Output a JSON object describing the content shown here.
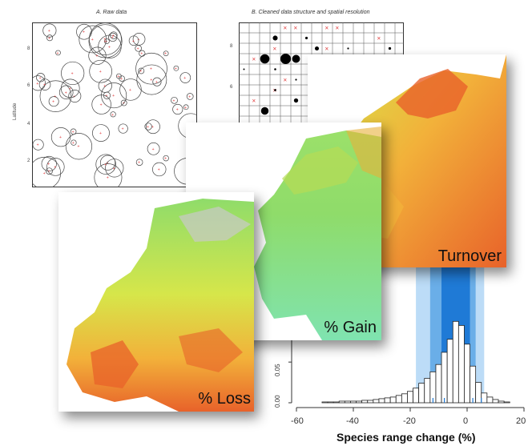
{
  "panel_a": {
    "title": "A. Raw data",
    "ylabel": "Latitude",
    "yticks": [
      "8",
      "6",
      "4",
      "2"
    ]
  },
  "panel_b": {
    "title": "B. Cleaned data structure and spatial resolution",
    "yticks": [
      "8",
      "6"
    ]
  },
  "maps": {
    "turnover": {
      "label": "Turnover"
    },
    "gain": {
      "label": "% Gain"
    },
    "loss": {
      "label": "% Loss"
    }
  },
  "colors": {
    "high": "#e8622a",
    "mid": "#f2b13a",
    "low": "#d6e64a",
    "green": "#8fdc6a",
    "teal": "#7fe3b0",
    "bar_fill": "#ffffff",
    "band_light": "#bcdcf7",
    "band_mid": "#6aaee8",
    "band_dark": "#1f7ad6",
    "red_cross": "#e0393a"
  },
  "chart_data": {
    "type": "bar",
    "xlabel": "Species range change (%)",
    "ylabel": "",
    "xlim": [
      -60,
      20
    ],
    "ylim": [
      0,
      0.18
    ],
    "xticks": [
      "-60",
      "-40",
      "-20",
      "0",
      "20"
    ],
    "yticks": [
      "0.00",
      "0.05"
    ],
    "bin_width": 2,
    "bins": [
      {
        "x": -50,
        "value": 0.001
      },
      {
        "x": -48,
        "value": 0.001
      },
      {
        "x": -46,
        "value": 0.001
      },
      {
        "x": -44,
        "value": 0.002
      },
      {
        "x": -42,
        "value": 0.002
      },
      {
        "x": -40,
        "value": 0.002
      },
      {
        "x": -38,
        "value": 0.002
      },
      {
        "x": -36,
        "value": 0.003
      },
      {
        "x": -34,
        "value": 0.003
      },
      {
        "x": -32,
        "value": 0.004
      },
      {
        "x": -30,
        "value": 0.005
      },
      {
        "x": -28,
        "value": 0.006
      },
      {
        "x": -26,
        "value": 0.007
      },
      {
        "x": -24,
        "value": 0.009
      },
      {
        "x": -22,
        "value": 0.011
      },
      {
        "x": -20,
        "value": 0.014
      },
      {
        "x": -18,
        "value": 0.018
      },
      {
        "x": -16,
        "value": 0.024
      },
      {
        "x": -14,
        "value": 0.03
      },
      {
        "x": -12,
        "value": 0.038
      },
      {
        "x": -10,
        "value": 0.047
      },
      {
        "x": -8,
        "value": 0.062
      },
      {
        "x": -6,
        "value": 0.078
      },
      {
        "x": -4,
        "value": 0.1
      },
      {
        "x": -2,
        "value": 0.095
      },
      {
        "x": 0,
        "value": 0.072
      },
      {
        "x": 2,
        "value": 0.045
      },
      {
        "x": 4,
        "value": 0.025
      },
      {
        "x": 6,
        "value": 0.012
      },
      {
        "x": 8,
        "value": 0.007
      },
      {
        "x": 10,
        "value": 0.004
      },
      {
        "x": 12,
        "value": 0.002
      },
      {
        "x": 14,
        "value": 0.001
      }
    ],
    "bands": [
      {
        "from": -18,
        "to": 6,
        "level": "light"
      },
      {
        "from": -13,
        "to": 3,
        "level": "mid"
      },
      {
        "from": -9,
        "to": 1,
        "level": "dark"
      }
    ],
    "quantile_lines": [
      -12,
      -8,
      2,
      5
    ]
  }
}
